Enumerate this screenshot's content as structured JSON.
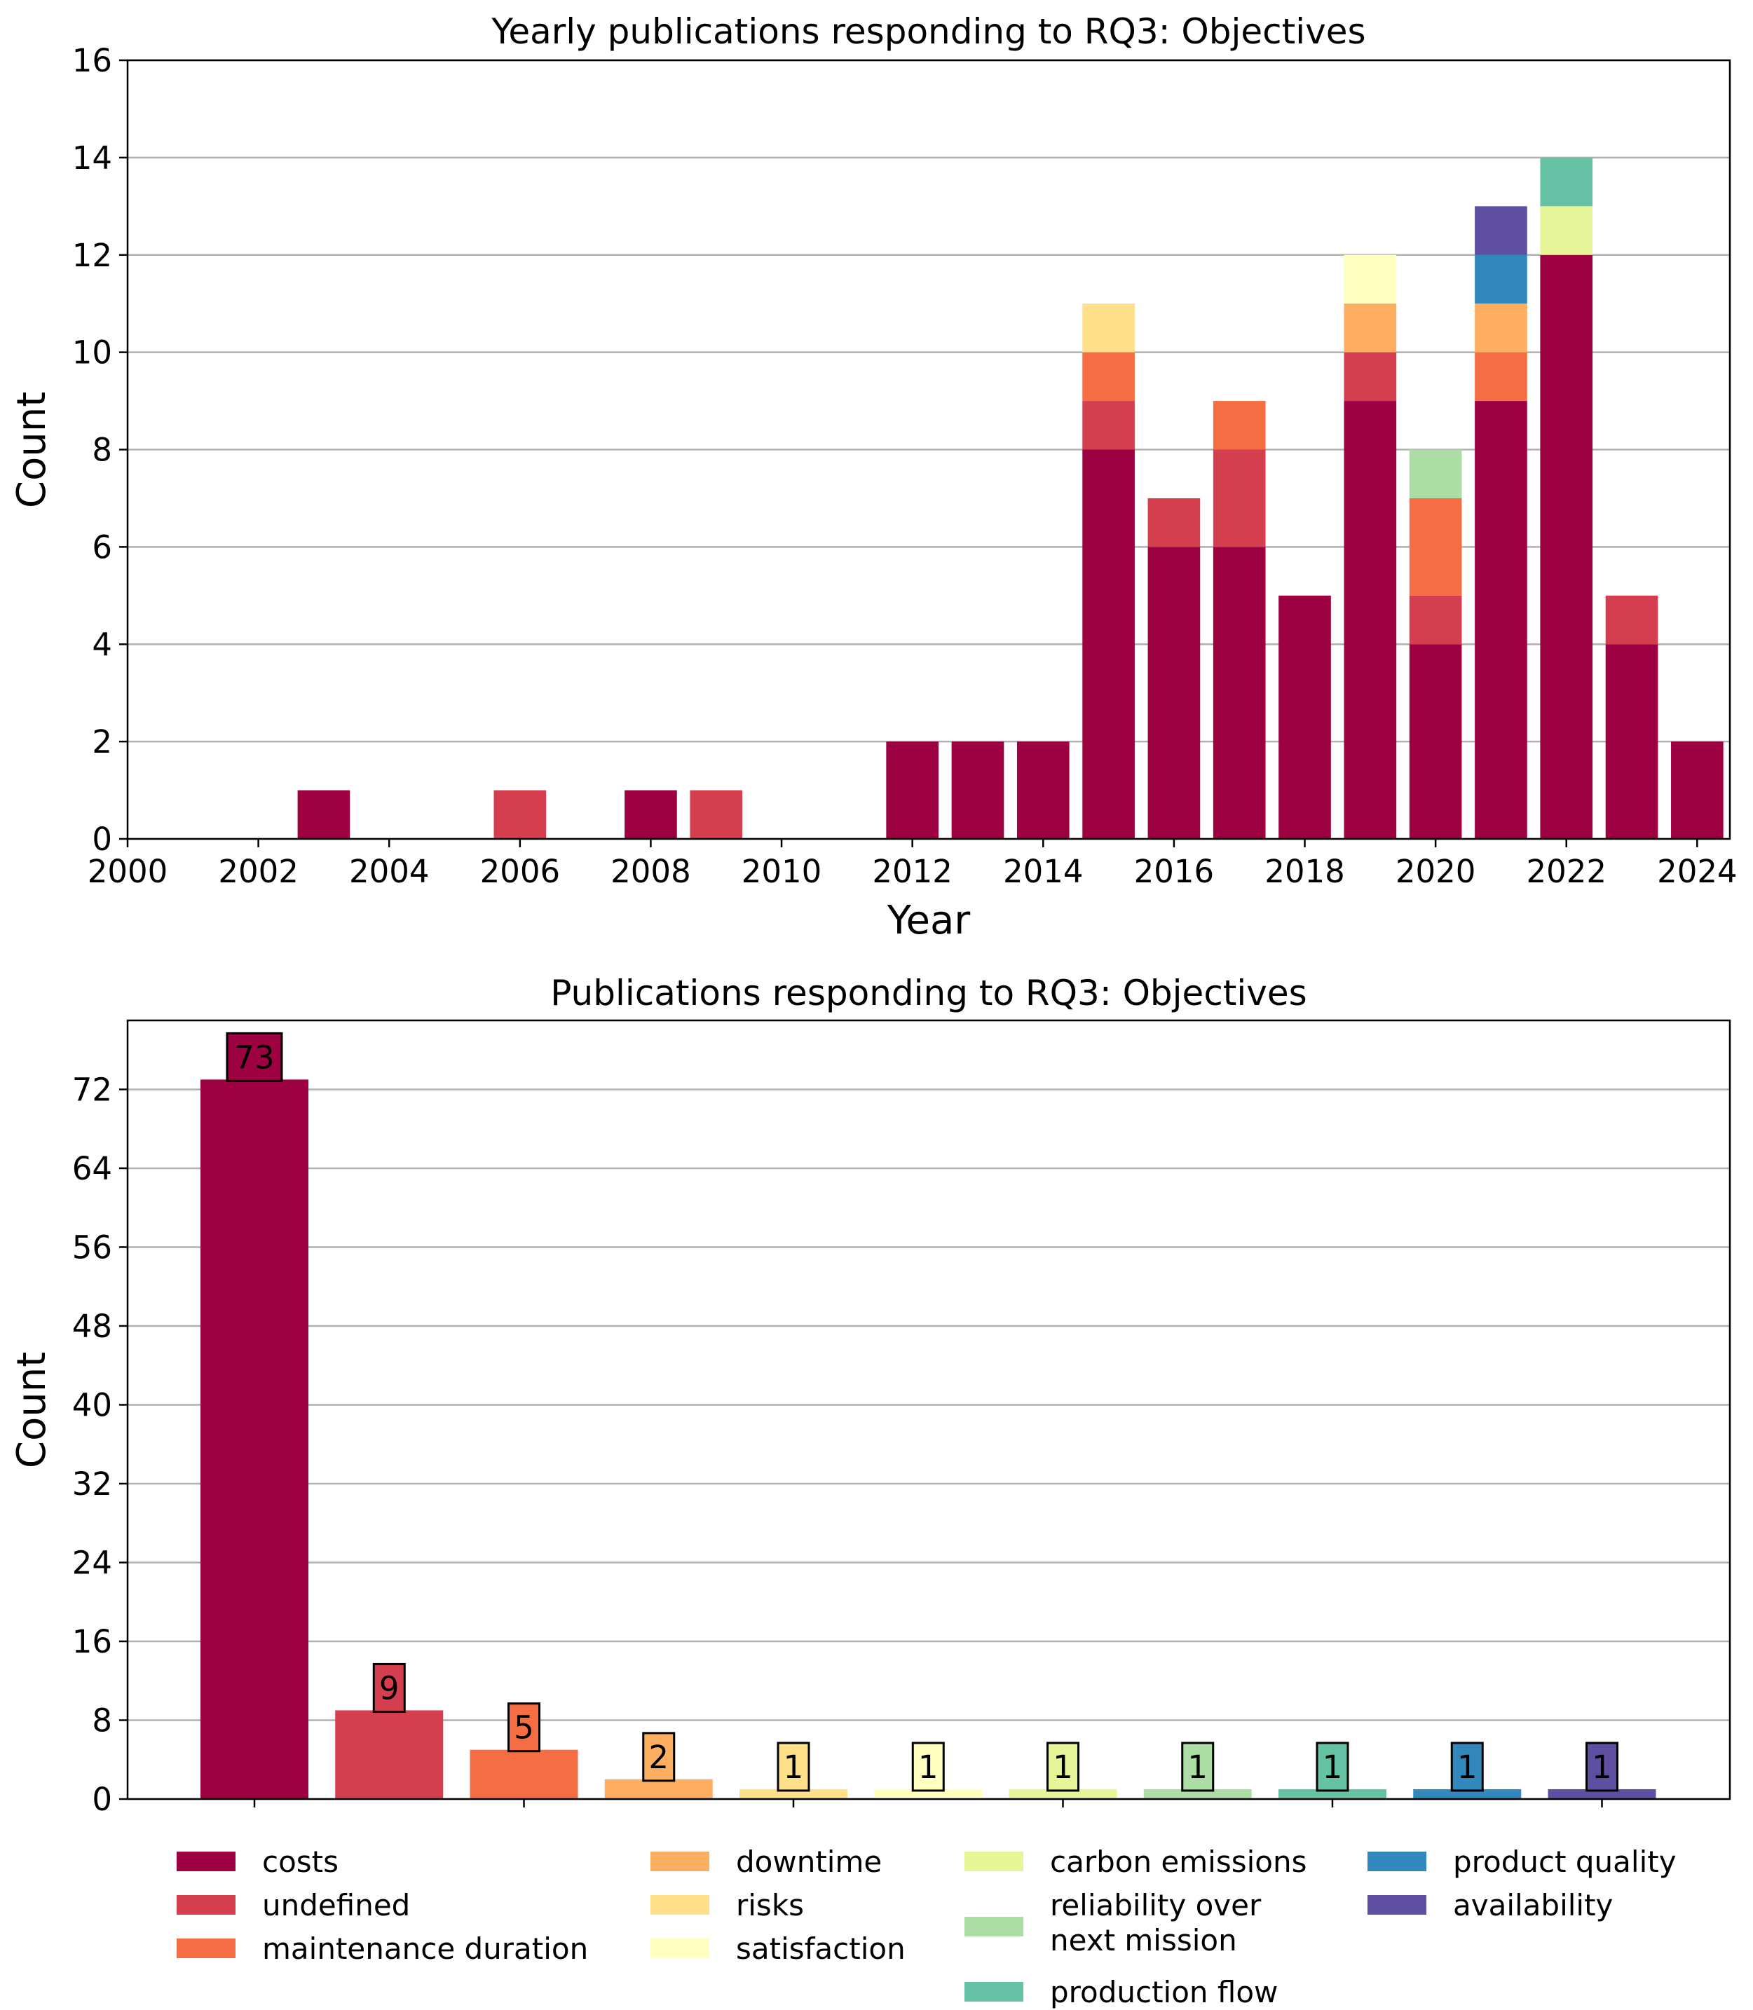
{
  "chart_data": [
    {
      "type": "bar",
      "stacked": true,
      "title": "Yearly publications responding to RQ3: Objectives",
      "xlabel": "Year",
      "ylabel": "Count",
      "xlim": [
        2000,
        2024.5
      ],
      "ylim": [
        0,
        16
      ],
      "xticks": [
        "2000",
        "2002",
        "2004",
        "2006",
        "2008",
        "2010",
        "2012",
        "2014",
        "2016",
        "2018",
        "2020",
        "2022",
        "2024"
      ],
      "yticks": [
        "0",
        "2",
        "4",
        "6",
        "8",
        "10",
        "12",
        "14",
        "16"
      ],
      "grid": "y",
      "categories": [
        2003,
        2006,
        2008,
        2009,
        2012,
        2013,
        2014,
        2015,
        2016,
        2017,
        2018,
        2019,
        2020,
        2021,
        2022,
        2023,
        2024
      ],
      "series": [
        {
          "name": "costs",
          "color": "#9e0142",
          "values": [
            1,
            0,
            1,
            0,
            2,
            2,
            2,
            8,
            6,
            6,
            5,
            9,
            4,
            9,
            12,
            4,
            2
          ]
        },
        {
          "name": "undefined",
          "color": "#d53e4f",
          "values": [
            0,
            1,
            0,
            1,
            0,
            0,
            0,
            1,
            1,
            2,
            0,
            1,
            1,
            0,
            0,
            1,
            0
          ]
        },
        {
          "name": "maintenance duration",
          "color": "#f46d43",
          "values": [
            0,
            0,
            0,
            0,
            0,
            0,
            0,
            1,
            0,
            1,
            0,
            0,
            2,
            1,
            0,
            0,
            0
          ]
        },
        {
          "name": "downtime",
          "color": "#fdae61",
          "values": [
            0,
            0,
            0,
            0,
            0,
            0,
            0,
            0,
            0,
            0,
            0,
            1,
            0,
            1,
            0,
            0,
            0
          ]
        },
        {
          "name": "risks",
          "color": "#fee08b",
          "values": [
            0,
            0,
            0,
            0,
            0,
            0,
            0,
            1,
            0,
            0,
            0,
            0,
            0,
            0,
            0,
            0,
            0
          ]
        },
        {
          "name": "satisfaction",
          "color": "#ffffbf",
          "values": [
            0,
            0,
            0,
            0,
            0,
            0,
            0,
            0,
            0,
            0,
            0,
            1,
            0,
            0,
            0,
            0,
            0
          ]
        },
        {
          "name": "carbon emissions",
          "color": "#e6f598",
          "values": [
            0,
            0,
            0,
            0,
            0,
            0,
            0,
            0,
            0,
            0,
            0,
            0,
            0,
            0,
            1,
            0,
            0
          ]
        },
        {
          "name": "reliability over next mission",
          "color": "#abdda4",
          "values": [
            0,
            0,
            0,
            0,
            0,
            0,
            0,
            0,
            0,
            0,
            0,
            0,
            1,
            0,
            0,
            0,
            0
          ]
        },
        {
          "name": "production flow",
          "color": "#66c2a5",
          "values": [
            0,
            0,
            0,
            0,
            0,
            0,
            0,
            0,
            0,
            0,
            0,
            0,
            0,
            0,
            1,
            0,
            0
          ]
        },
        {
          "name": "product quality",
          "color": "#3288bd",
          "values": [
            0,
            0,
            0,
            0,
            0,
            0,
            0,
            0,
            0,
            0,
            0,
            0,
            0,
            1,
            0,
            0,
            0
          ]
        },
        {
          "name": "availability",
          "color": "#5e4fa2",
          "values": [
            0,
            0,
            0,
            0,
            0,
            0,
            0,
            0,
            0,
            0,
            0,
            0,
            0,
            1,
            0,
            0,
            0
          ]
        }
      ]
    },
    {
      "type": "bar",
      "title": "Publications responding to RQ3: Objectives",
      "xlabel": "",
      "ylabel": "Count",
      "ylim": [
        0,
        79
      ],
      "yticks": [
        "0",
        "8",
        "16",
        "24",
        "32",
        "40",
        "48",
        "56",
        "64",
        "72"
      ],
      "grid": "y",
      "categories": [
        "costs",
        "undefined",
        "maintenance duration",
        "downtime",
        "risks",
        "satisfaction",
        "carbon emissions",
        "reliability over next mission",
        "production flow",
        "product quality",
        "availability"
      ],
      "values": [
        73,
        9,
        5,
        2,
        1,
        1,
        1,
        1,
        1,
        1,
        1
      ],
      "value_labels": [
        "73",
        "9",
        "5",
        "2",
        "1",
        "1",
        "1",
        "1",
        "1",
        "1",
        "1"
      ],
      "colors": [
        "#9e0142",
        "#d53e4f",
        "#f46d43",
        "#fdae61",
        "#fee08b",
        "#ffffbf",
        "#e6f598",
        "#abdda4",
        "#66c2a5",
        "#3288bd",
        "#5e4fa2"
      ]
    }
  ],
  "legend": {
    "placement": "bottom",
    "columns": [
      [
        {
          "lines": [
            "costs"
          ],
          "color": "#9e0142"
        },
        {
          "lines": [
            "undefined"
          ],
          "color": "#d53e4f"
        },
        {
          "lines": [
            "maintenance duration"
          ],
          "color": "#f46d43"
        }
      ],
      [
        {
          "lines": [
            "downtime"
          ],
          "color": "#fdae61"
        },
        {
          "lines": [
            "risks"
          ],
          "color": "#fee08b"
        },
        {
          "lines": [
            "satisfaction"
          ],
          "color": "#ffffbf"
        }
      ],
      [
        {
          "lines": [
            "carbon emissions"
          ],
          "color": "#e6f598"
        },
        {
          "lines": [
            "reliability over",
            "next mission"
          ],
          "color": "#abdda4"
        },
        {
          "lines": [
            "production flow"
          ],
          "color": "#66c2a5"
        }
      ],
      [
        {
          "lines": [
            "product quality"
          ],
          "color": "#3288bd"
        },
        {
          "lines": [
            "availability"
          ],
          "color": "#5e4fa2"
        }
      ]
    ]
  }
}
